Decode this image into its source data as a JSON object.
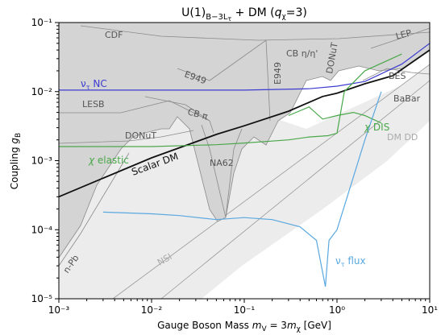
{
  "chart_data": {
    "type": "line",
    "title": "U(1)_{B−3L_τ} + DM (q_χ=3)",
    "xlabel": "Gauge Boson Mass m_V = 3m_χ [GeV]",
    "ylabel": "Coupling g_B",
    "x_scale": "log",
    "y_scale": "log",
    "xlim": [
      0.001,
      10
    ],
    "ylim": [
      1e-05,
      0.1
    ],
    "x_ticks": [
      0.001,
      0.01,
      0.1,
      1,
      10
    ],
    "x_tick_labels": [
      "10⁻³",
      "10⁻²",
      "10⁻¹",
      "10⁰",
      "10¹"
    ],
    "y_ticks": [
      1e-05,
      0.0001,
      0.001,
      0.01,
      0.1
    ],
    "y_tick_labels": [
      "10⁻⁵",
      "10⁻⁴",
      "10⁻³",
      "10⁻²",
      "10⁻¹"
    ],
    "colors": {
      "excluded_fill": "#d4d4d4",
      "excluded_edge": "#8a8a8a",
      "light_fill": "#ececec",
      "nc": "#3b3bd0",
      "green": "#4aa84a",
      "black": "#111111",
      "flux": "#5aa8e0",
      "label_gray": "#555555"
    },
    "series": [
      {
        "name": "Scalar DM",
        "color": "#111111",
        "x": [
          0.001,
          0.01,
          0.05,
          0.1,
          0.3,
          0.7,
          1.0,
          2.0,
          4.0,
          10.0
        ],
        "y": [
          0.0003,
          0.0011,
          0.0024,
          0.0032,
          0.0052,
          0.0085,
          0.0095,
          0.013,
          0.017,
          0.04
        ]
      },
      {
        "name": "ν_τ NC",
        "color": "#3b3bd0",
        "x": [
          0.001,
          0.01,
          0.1,
          0.5,
          1.0,
          2.0,
          5.0,
          10.0
        ],
        "y": [
          0.0105,
          0.0105,
          0.0105,
          0.011,
          0.012,
          0.014,
          0.025,
          0.05
        ]
      },
      {
        "name": "χ elastic",
        "color": "#4aa84a",
        "x": [
          0.001,
          0.01,
          0.05,
          0.1,
          0.3,
          0.5,
          0.8,
          1.0,
          1.2,
          2.0,
          5.0
        ],
        "y": [
          0.0016,
          0.0016,
          0.0017,
          0.0018,
          0.002,
          0.0022,
          0.0023,
          0.0025,
          0.01,
          0.02,
          0.035
        ]
      },
      {
        "name": "χ DIS",
        "color": "#4aa84a",
        "x": [
          0.3,
          0.5,
          0.7,
          1.0,
          1.5,
          2.0,
          3.0
        ],
        "y": [
          0.0045,
          0.006,
          0.004,
          0.0045,
          0.005,
          0.0045,
          0.0035
        ]
      },
      {
        "name": "ν_τ flux",
        "color": "#5aa8e0",
        "x": [
          0.003,
          0.01,
          0.02,
          0.05,
          0.1,
          0.2,
          0.4,
          0.6,
          0.75,
          0.78,
          0.82,
          1.0,
          2.0,
          3.0
        ],
        "y": [
          0.00018,
          0.00017,
          0.00016,
          0.00014,
          0.00015,
          0.00014,
          0.00011,
          7e-05,
          1.5e-05,
          3e-05,
          7e-05,
          0.0001,
          0.002,
          0.01
        ]
      }
    ],
    "region_labels": [
      "CDF",
      "E949",
      "LESB",
      "CB π",
      "DONuT",
      "NA62",
      "CB η/η'",
      "DONuT",
      "LEP",
      "BES",
      "BaBar",
      "DM DD",
      "n-Pb",
      "NSI"
    ],
    "label_texts": {
      "nc": "ν_τ NC",
      "elastic": "χ elastic",
      "scalar": "Scalar DM",
      "dis": "χ DIS",
      "flux": "ν_τ flux"
    },
    "grid": false,
    "legend": "none"
  }
}
